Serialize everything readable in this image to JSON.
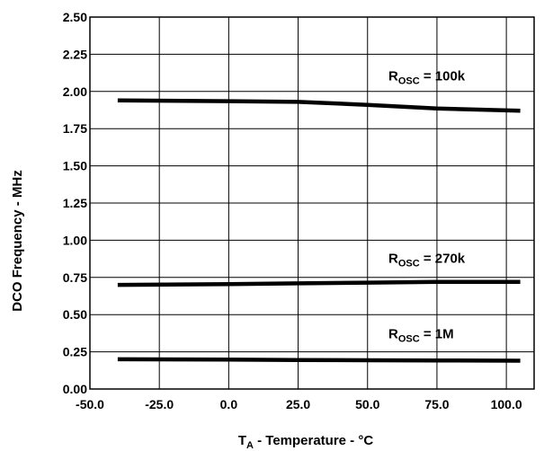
{
  "chart_data": {
    "type": "line",
    "title": "",
    "xlabel": {
      "main": "T",
      "sub": "A",
      "rest": " - Temperature - °C"
    },
    "ylabel": "DCO Frequency - MHz",
    "xlim": [
      -50,
      110
    ],
    "ylim": [
      0,
      2.5
    ],
    "x_ticks": [
      "-50.0",
      "-25.0",
      "0.0",
      "25.0",
      "50.0",
      "75.0",
      "100.0"
    ],
    "y_ticks": [
      "0.00",
      "0.25",
      "0.50",
      "0.75",
      "1.00",
      "1.25",
      "1.50",
      "1.75",
      "2.00",
      "2.25",
      "2.50"
    ],
    "grid": true,
    "legend": "none",
    "line_color": "#000000",
    "series": [
      {
        "name": "100k",
        "label_prefix": "R",
        "label_sub": "OSC",
        "label_suffix": " = 100k",
        "x": [
          -40,
          0,
          25,
          50,
          75,
          105
        ],
        "y": [
          1.94,
          1.935,
          1.93,
          1.91,
          1.885,
          1.87
        ]
      },
      {
        "name": "270k",
        "label_prefix": "R",
        "label_sub": "OSC",
        "label_suffix": " = 270k",
        "x": [
          -40,
          0,
          25,
          50,
          75,
          105
        ],
        "y": [
          0.7,
          0.705,
          0.71,
          0.715,
          0.72,
          0.72
        ]
      },
      {
        "name": "1M",
        "label_prefix": "R",
        "label_sub": "OSC",
        "label_suffix": " = 1M",
        "x": [
          -40,
          0,
          25,
          50,
          75,
          105
        ],
        "y": [
          0.2,
          0.198,
          0.195,
          0.193,
          0.192,
          0.19
        ]
      }
    ]
  }
}
